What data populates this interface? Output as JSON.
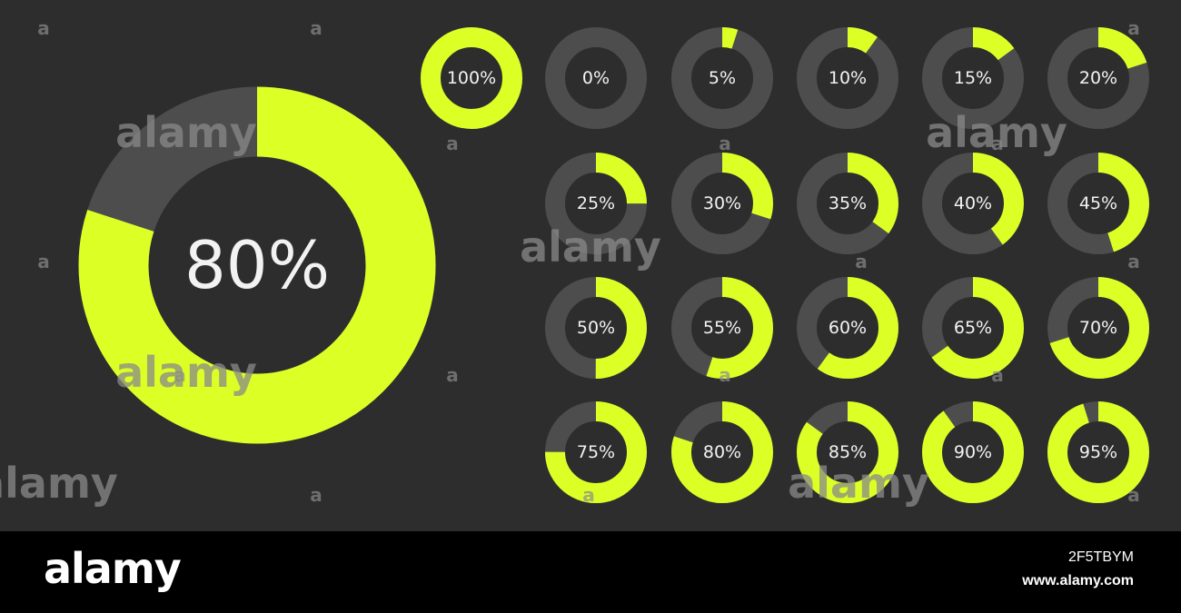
{
  "colors": {
    "background": "#2d2d2d",
    "track": "#4d4d4d",
    "fill": "#dcff26",
    "label": "#f2f2f2",
    "watermark": "#8a8a8a",
    "footer_background": "#000000",
    "footer_text": "#ffffff"
  },
  "chart_data": {
    "type": "pie",
    "style": "donut-progress",
    "hero": {
      "label": "80%",
      "value": 80
    },
    "rings": [
      {
        "label": "100%",
        "value": 100
      },
      {
        "label": "0%",
        "value": 0
      },
      {
        "label": "5%",
        "value": 5
      },
      {
        "label": "10%",
        "value": 10
      },
      {
        "label": "15%",
        "value": 15
      },
      {
        "label": "20%",
        "value": 20
      },
      {
        "label": "25%",
        "value": 25
      },
      {
        "label": "30%",
        "value": 30
      },
      {
        "label": "35%",
        "value": 35
      },
      {
        "label": "40%",
        "value": 40
      },
      {
        "label": "45%",
        "value": 45
      },
      {
        "label": "50%",
        "value": 50
      },
      {
        "label": "55%",
        "value": 55
      },
      {
        "label": "60%",
        "value": 60
      },
      {
        "label": "65%",
        "value": 65
      },
      {
        "label": "70%",
        "value": 70
      },
      {
        "label": "75%",
        "value": 75
      },
      {
        "label": "80%",
        "value": 80
      },
      {
        "label": "85%",
        "value": 85
      },
      {
        "label": "90%",
        "value": 90
      },
      {
        "label": "95%",
        "value": 95
      }
    ]
  },
  "watermark": {
    "word": "alamy",
    "mark": "a"
  },
  "footer": {
    "logo": "alamy",
    "image_id": "2F5TBYM",
    "site": "www.alamy.com"
  }
}
